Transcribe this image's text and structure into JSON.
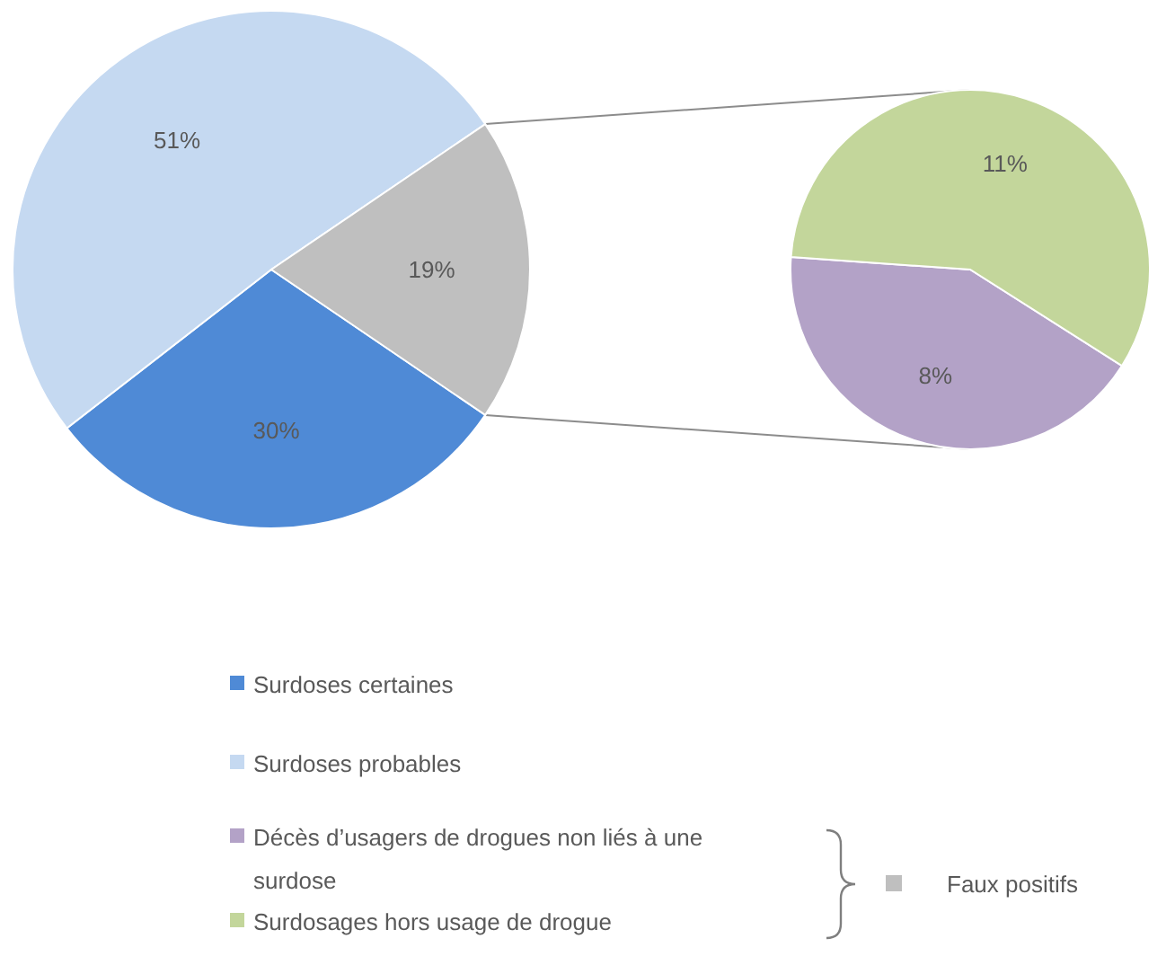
{
  "chart_data": [
    {
      "type": "pie",
      "categories": [
        "Surdoses certaines",
        "Surdoses probables",
        "Faux positifs"
      ],
      "values": [
        30,
        51,
        19
      ],
      "colors": [
        "#4f8ad6",
        "#c5d9f1",
        "#bfbfbf"
      ],
      "value_labels": [
        "30%",
        "51%",
        "19%"
      ],
      "legend": "bottom"
    },
    {
      "type": "pie",
      "categories": [
        "Décès d’usagers de drogues non liés à une surdose",
        "Surdosages hors usage de drogue"
      ],
      "values": [
        8,
        11
      ],
      "colors": [
        "#b3a2c7",
        "#c3d69b"
      ],
      "value_labels": [
        "8%",
        "11%"
      ],
      "legend": "bottom"
    }
  ]
}
